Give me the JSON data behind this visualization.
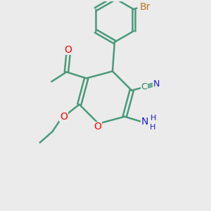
{
  "bg_color": "#ebebeb",
  "bond_color": "#4a9a7a",
  "bond_width": 1.8,
  "O_color": "#ff0000",
  "N_color": "#1a1acd",
  "Br_color": "#b87820",
  "C_color": "#2a7a5a",
  "figsize": [
    3.0,
    3.0
  ],
  "dpi": 100,
  "xlim": [
    0,
    10
  ],
  "ylim": [
    0,
    10
  ]
}
